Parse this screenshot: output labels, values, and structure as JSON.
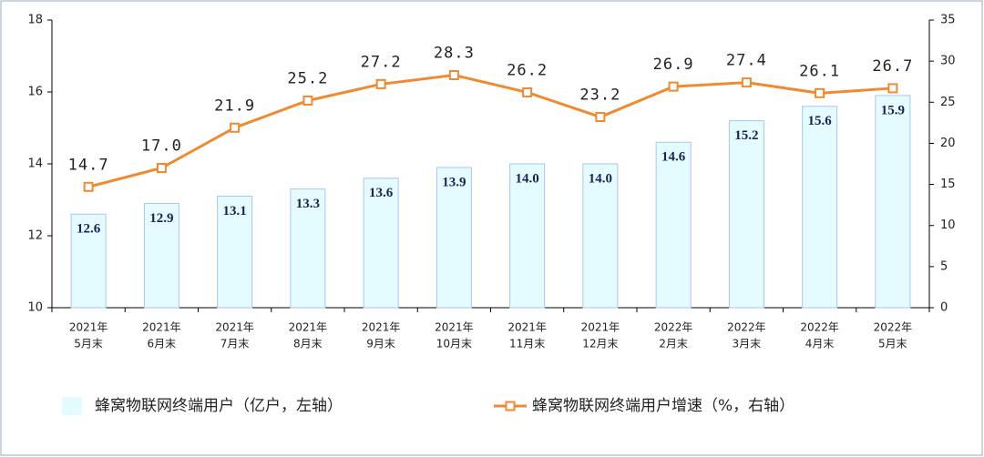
{
  "chart_data": {
    "type": "bar-line",
    "categories": [
      [
        "2021年",
        "5月末"
      ],
      [
        "2021年",
        "6月末"
      ],
      [
        "2021年",
        "7月末"
      ],
      [
        "2021年",
        "8月末"
      ],
      [
        "2021年",
        "9月末"
      ],
      [
        "2021年",
        "10月末"
      ],
      [
        "2021年",
        "11月末"
      ],
      [
        "2021年",
        "12月末"
      ],
      [
        "2022年",
        "2月末"
      ],
      [
        "2022年",
        "3月末"
      ],
      [
        "2022年",
        "4月末"
      ],
      [
        "2022年",
        "5月末"
      ]
    ],
    "series": [
      {
        "name": "蜂窝物联网终端用户（亿户，左轴）",
        "type": "bar",
        "color": "#e4fbff",
        "edge": "#a9c6f0",
        "values": [
          12.6,
          12.9,
          13.1,
          13.3,
          13.6,
          13.9,
          14.0,
          14.0,
          14.6,
          15.2,
          15.6,
          15.9
        ],
        "value_labels": [
          "12.6",
          "12.9",
          "13.1",
          "13.3",
          "13.6",
          "13.9",
          "14.0",
          "14.0",
          "14.6",
          "15.2",
          "15.6",
          "15.9"
        ]
      },
      {
        "name": "蜂窝物联网终端用户增速（%，右轴）",
        "type": "line",
        "axis": "y2",
        "color": "#f08a30",
        "values": [
          14.7,
          17.0,
          21.9,
          25.2,
          27.2,
          28.3,
          26.2,
          23.2,
          26.9,
          27.4,
          26.1,
          26.7
        ],
        "value_labels": [
          "14.7",
          "17.0",
          "21.9",
          "25.2",
          "27.2",
          "28.3",
          "26.2",
          "23.2",
          "26.9",
          "27.4",
          "26.1",
          "26.7"
        ]
      }
    ],
    "ylim": [
      10,
      18
    ],
    "yticks": [
      10,
      12,
      14,
      16,
      18
    ],
    "y2lim": [
      0,
      35
    ],
    "y2ticks": [
      0,
      5,
      10,
      15,
      20,
      25,
      30,
      35
    ]
  }
}
